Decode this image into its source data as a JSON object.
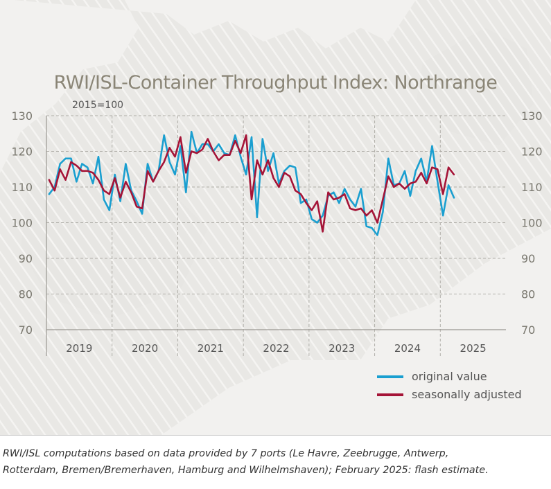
{
  "chart_data": {
    "type": "line",
    "title": "RWI/ISL-Container Throughput Index: Northrange",
    "subtitle": "2015=100",
    "ylim": [
      70,
      130
    ],
    "yticks": [
      70,
      80,
      90,
      100,
      110,
      120,
      130
    ],
    "years": [
      "2019",
      "2020",
      "2021",
      "2022",
      "2023",
      "2024",
      "2025"
    ],
    "x_start": "2019-01",
    "grid": true,
    "legend_position": "bottom-right",
    "series": [
      {
        "name": "original value",
        "color": "#1a9fd0",
        "values": [
          108,
          110,
          116.5,
          118,
          118,
          111.5,
          116.5,
          115.5,
          111,
          118.5,
          106.5,
          103.5,
          113.5,
          106,
          116.5,
          109,
          106,
          102.5,
          116.5,
          111.5,
          114.5,
          124.5,
          117,
          113.5,
          121.5,
          108.5,
          125.5,
          119.5,
          122,
          122,
          120,
          122,
          119.5,
          119,
          124.5,
          118.5,
          113.5,
          124,
          101.5,
          123.5,
          114.5,
          119.5,
          111,
          114.5,
          116,
          115.5,
          105.5,
          106.5,
          101,
          100,
          102,
          107.5,
          108.5,
          105.5,
          109.5,
          106.5,
          104.5,
          109.5,
          99,
          98.5,
          96.5,
          103,
          118,
          110.5,
          111,
          114.5,
          107.5,
          114.5,
          118,
          111.5,
          121.5,
          111.5,
          102,
          110.5,
          107
        ]
      },
      {
        "name": "seasonally adjusted",
        "color": "#a51437",
        "values": [
          112,
          109,
          115,
          112,
          117,
          116,
          114.5,
          114.5,
          114,
          112,
          109,
          108,
          112.5,
          107,
          111.5,
          108.5,
          104.5,
          104,
          114.5,
          111.5,
          114.5,
          117,
          121,
          118.5,
          124,
          114,
          120,
          119.5,
          120.5,
          123.5,
          120,
          117.5,
          119,
          119,
          123,
          119.5,
          124.5,
          106.5,
          117.5,
          113.5,
          117.5,
          112.5,
          110,
          114,
          113,
          109,
          108,
          105.5,
          103.5,
          106,
          97.5,
          108.5,
          106.5,
          107,
          108,
          104,
          103.5,
          104,
          102,
          103.5,
          100,
          106.5,
          113,
          110,
          111,
          109.5,
          111,
          111.5,
          114,
          111,
          115.5,
          115,
          108,
          115.5,
          113.5
        ]
      }
    ]
  },
  "legend": {
    "items": [
      {
        "label": "original value",
        "color": "#1a9fd0"
      },
      {
        "label": "seasonally adjusted",
        "color": "#a51437"
      }
    ]
  },
  "footer": {
    "line1": "RWI/ISL computations based on data provided by 7 ports (Le Havre, Zeebrugge, Antwerp,",
    "line2": "Rotterdam, Bremen/Bremerhaven, Hamburg and Wilhelmshaven); February 2025: flash estimate."
  }
}
